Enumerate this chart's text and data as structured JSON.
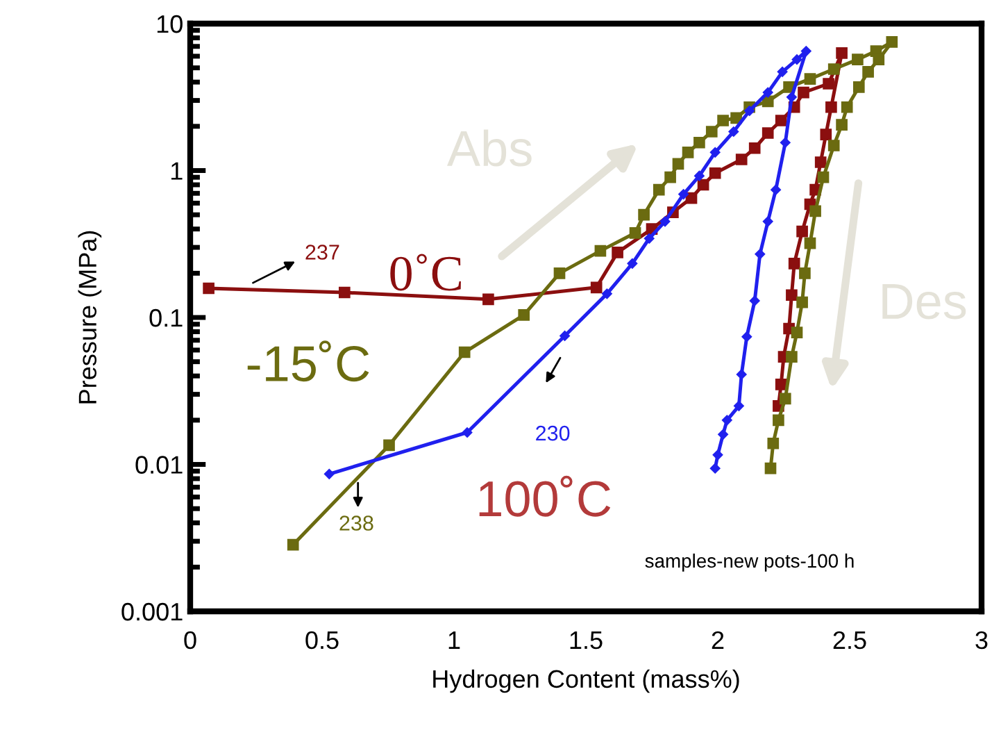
{
  "chart_data": {
    "type": "line",
    "xlabel": "Hydrogen Content (mass%)",
    "ylabel": "Pressure (MPa)",
    "log": "y",
    "xlim": [
      0,
      3
    ],
    "xticks": [
      0,
      0.5,
      1,
      1.5,
      2,
      2.5,
      3
    ],
    "ylim": [
      0.001,
      10
    ],
    "yticks": [
      0.001,
      0.01,
      0.1,
      1,
      10
    ],
    "grid": false,
    "line_style": "solid",
    "series": [
      {
        "name": "0˚C",
        "color": "#8b0f0f",
        "marker": "square",
        "x": [
          0.07,
          0.585,
          1.13,
          1.54,
          1.62,
          1.75,
          1.83,
          1.9,
          1.945,
          1.99,
          2.09,
          2.14,
          2.19,
          2.24,
          2.29,
          2.325,
          2.42,
          2.47,
          2.43,
          2.41,
          2.39,
          2.37,
          2.35,
          2.32,
          2.29,
          2.28,
          2.27,
          2.25,
          2.24,
          2.23
        ],
        "values": [
          0.158,
          0.148,
          0.133,
          0.16,
          0.277,
          0.4,
          0.52,
          0.65,
          0.8,
          0.96,
          1.19,
          1.42,
          1.8,
          2.19,
          2.7,
          3.4,
          3.9,
          6.3,
          2.7,
          1.76,
          1.14,
          0.74,
          0.59,
          0.385,
          0.233,
          0.142,
          0.084,
          0.054,
          0.035,
          0.025
        ]
      },
      {
        "name": "-15˚C",
        "color": "#6b6b10",
        "marker": "square",
        "x": [
          0.39,
          0.754,
          1.04,
          1.265,
          1.4,
          1.555,
          1.687,
          1.72,
          1.777,
          1.82,
          1.85,
          1.887,
          1.93,
          1.977,
          2.02,
          2.07,
          2.12,
          2.19,
          2.27,
          2.35,
          2.44,
          2.53,
          2.6,
          2.66,
          2.61,
          2.57,
          2.535,
          2.49,
          2.47,
          2.44,
          2.4,
          2.37,
          2.35,
          2.33,
          2.32,
          2.3,
          2.28,
          2.256,
          2.23,
          2.21,
          2.2
        ],
        "values": [
          0.00284,
          0.0135,
          0.058,
          0.104,
          0.2,
          0.284,
          0.376,
          0.5,
          0.74,
          0.9,
          1.11,
          1.33,
          1.55,
          1.84,
          2.19,
          2.28,
          2.7,
          2.96,
          3.7,
          4.2,
          4.9,
          5.7,
          6.5,
          7.5,
          5.7,
          4.7,
          3.7,
          2.7,
          2.05,
          1.48,
          0.9,
          0.53,
          0.32,
          0.2,
          0.127,
          0.079,
          0.054,
          0.028,
          0.02,
          0.0139,
          0.0094
        ]
      },
      {
        "name": "100˚C",
        "color": "#2020ee",
        "marker": "diamond",
        "x": [
          0.527,
          1.05,
          1.42,
          1.58,
          1.676,
          1.74,
          1.8,
          1.87,
          1.93,
          1.99,
          2.06,
          2.12,
          2.19,
          2.245,
          2.3,
          2.335,
          2.28,
          2.256,
          2.22,
          2.19,
          2.16,
          2.14,
          2.11,
          2.09,
          2.08,
          2.035,
          2.02,
          2.0,
          1.99
        ],
        "values": [
          0.0086,
          0.0165,
          0.075,
          0.145,
          0.233,
          0.345,
          0.45,
          0.69,
          0.92,
          1.33,
          1.84,
          2.55,
          3.4,
          4.7,
          5.7,
          6.5,
          3.16,
          1.55,
          0.74,
          0.45,
          0.27,
          0.13,
          0.074,
          0.041,
          0.025,
          0.02,
          0.016,
          0.0116,
          0.0094
        ]
      }
    ],
    "annotations": [
      "237",
      "230",
      "238",
      "Abs",
      "Des",
      "samples-new pots-100 h"
    ]
  }
}
